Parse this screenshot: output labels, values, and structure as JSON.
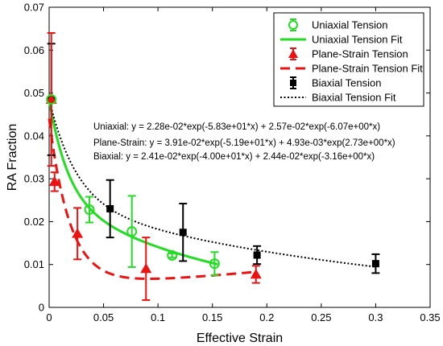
{
  "chart_data": {
    "type": "scatter",
    "xlabel": "Effective Strain",
    "ylabel": "RA Fraction",
    "xlim": [
      0,
      0.35
    ],
    "ylim": [
      0,
      0.07
    ],
    "xticks": [
      0,
      0.05,
      0.1,
      0.15,
      0.2,
      0.25,
      0.3,
      0.35
    ],
    "yticks": [
      0,
      0.01,
      0.02,
      0.03,
      0.04,
      0.05,
      0.06,
      0.07
    ],
    "xtick_labels": [
      "0",
      "0.05",
      "0.1",
      "0.15",
      "0.2",
      "0.25",
      "0.3",
      "0.35"
    ],
    "ytick_labels": [
      "0",
      "0.01",
      "0.02",
      "0.03",
      "0.04",
      "0.05",
      "0.06",
      "0.07"
    ],
    "grid": false,
    "legend_position": "top-right",
    "legend": [
      "Uniaxial Tension",
      "Uniaxial Tension Fit",
      "Plane-Strain Tension",
      "Plane-Strain Tension Fit",
      "Biaxial Tension",
      "Biaxial Tension Fit"
    ],
    "series": [
      {
        "name": "Uniaxial Tension",
        "kind": "points",
        "marker": "circle",
        "color": "#22dd22",
        "points": [
          {
            "x": 0.002,
            "y": 0.0485,
            "yerr": 0.0005
          },
          {
            "x": 0.037,
            "y": 0.0228,
            "yerr": 0.003
          },
          {
            "x": 0.076,
            "y": 0.0177,
            "yerr": 0.0083
          },
          {
            "x": 0.113,
            "y": 0.0121,
            "yerr": 0.0005
          },
          {
            "x": 0.152,
            "y": 0.0102,
            "yerr": 0.0027
          }
        ]
      },
      {
        "name": "Uniaxial Tension Fit",
        "kind": "fit",
        "style": "solid",
        "color": "#22dd22",
        "params": {
          "a": 0.0228,
          "b": -58.3,
          "c": 0.0257,
          "d": -6.07
        },
        "xrange": [
          0.0,
          0.155
        ]
      },
      {
        "name": "Plane-Strain Tension",
        "kind": "points",
        "marker": "triangle",
        "color": "#ee1111",
        "points": [
          {
            "x": 0.002,
            "y": 0.0485,
            "yerr": 0.0155
          },
          {
            "x": 0.005,
            "y": 0.0293,
            "yerr": 0.0022
          },
          {
            "x": 0.026,
            "y": 0.0172,
            "yerr": 0.006
          },
          {
            "x": 0.089,
            "y": 0.009,
            "yerr": 0.0073
          },
          {
            "x": 0.19,
            "y": 0.0077,
            "yerr": 0.002
          }
        ]
      },
      {
        "name": "Plane-Strain Tension Fit",
        "kind": "fit",
        "style": "dashed",
        "color": "#ee1111",
        "params": {
          "a": 0.0391,
          "b": -51.9,
          "c": 0.00493,
          "d": 2.73
        },
        "xrange": [
          0.0,
          0.19
        ]
      },
      {
        "name": "Biaxial Tension",
        "kind": "points",
        "marker": "square",
        "color": "#000000",
        "points": [
          {
            "x": 0.002,
            "y": 0.0485,
            "yerr": 0.013
          },
          {
            "x": 0.056,
            "y": 0.023,
            "yerr": 0.0067
          },
          {
            "x": 0.123,
            "y": 0.0175,
            "yerr": 0.0067
          },
          {
            "x": 0.191,
            "y": 0.0122,
            "yerr": 0.0021
          },
          {
            "x": 0.3,
            "y": 0.0102,
            "yerr": 0.0022
          }
        ]
      },
      {
        "name": "Biaxial Tension Fit",
        "kind": "fit",
        "style": "dotted",
        "color": "#000000",
        "params": {
          "a": 0.0241,
          "b": -40.0,
          "c": 0.0244,
          "d": -3.16
        },
        "xrange": [
          0.0,
          0.3
        ]
      }
    ],
    "annotations": [
      "Uniaxial: y = 2.28e-02*exp(-5.83e+01*x) + 2.57e-02*exp(-6.07e+00*x)",
      "Plane-Strain: y = 3.91e-02*exp(-5.19e+01*x) + 4.93e-03*exp(2.73e+00*x)",
      "Biaxial: y = 2.41e-02*exp(-4.00e+01*x) + 2.44e-02*exp(-3.16e+00*x)"
    ]
  }
}
